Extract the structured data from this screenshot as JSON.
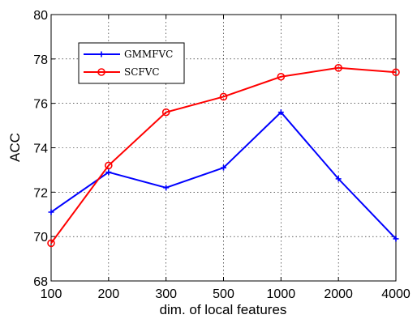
{
  "chart_data": {
    "type": "line",
    "categories": [
      "100",
      "200",
      "300",
      "500",
      "1000",
      "2000",
      "4000"
    ],
    "series": [
      {
        "name": "GMMFVC",
        "color": "#0000ff",
        "marker": "plus",
        "values": [
          71.1,
          72.9,
          72.2,
          73.1,
          75.6,
          72.6,
          69.9
        ]
      },
      {
        "name": "SCFVC",
        "color": "#ff0000",
        "marker": "circle",
        "values": [
          69.7,
          73.2,
          75.6,
          76.3,
          77.2,
          77.6,
          77.4
        ]
      }
    ],
    "xlabel": "dim. of local features",
    "ylabel": "ACC",
    "ylim": [
      68,
      80
    ],
    "yticks": [
      "68",
      "70",
      "72",
      "74",
      "76",
      "78",
      "80"
    ],
    "grid": true,
    "legend_position": "top-left"
  }
}
